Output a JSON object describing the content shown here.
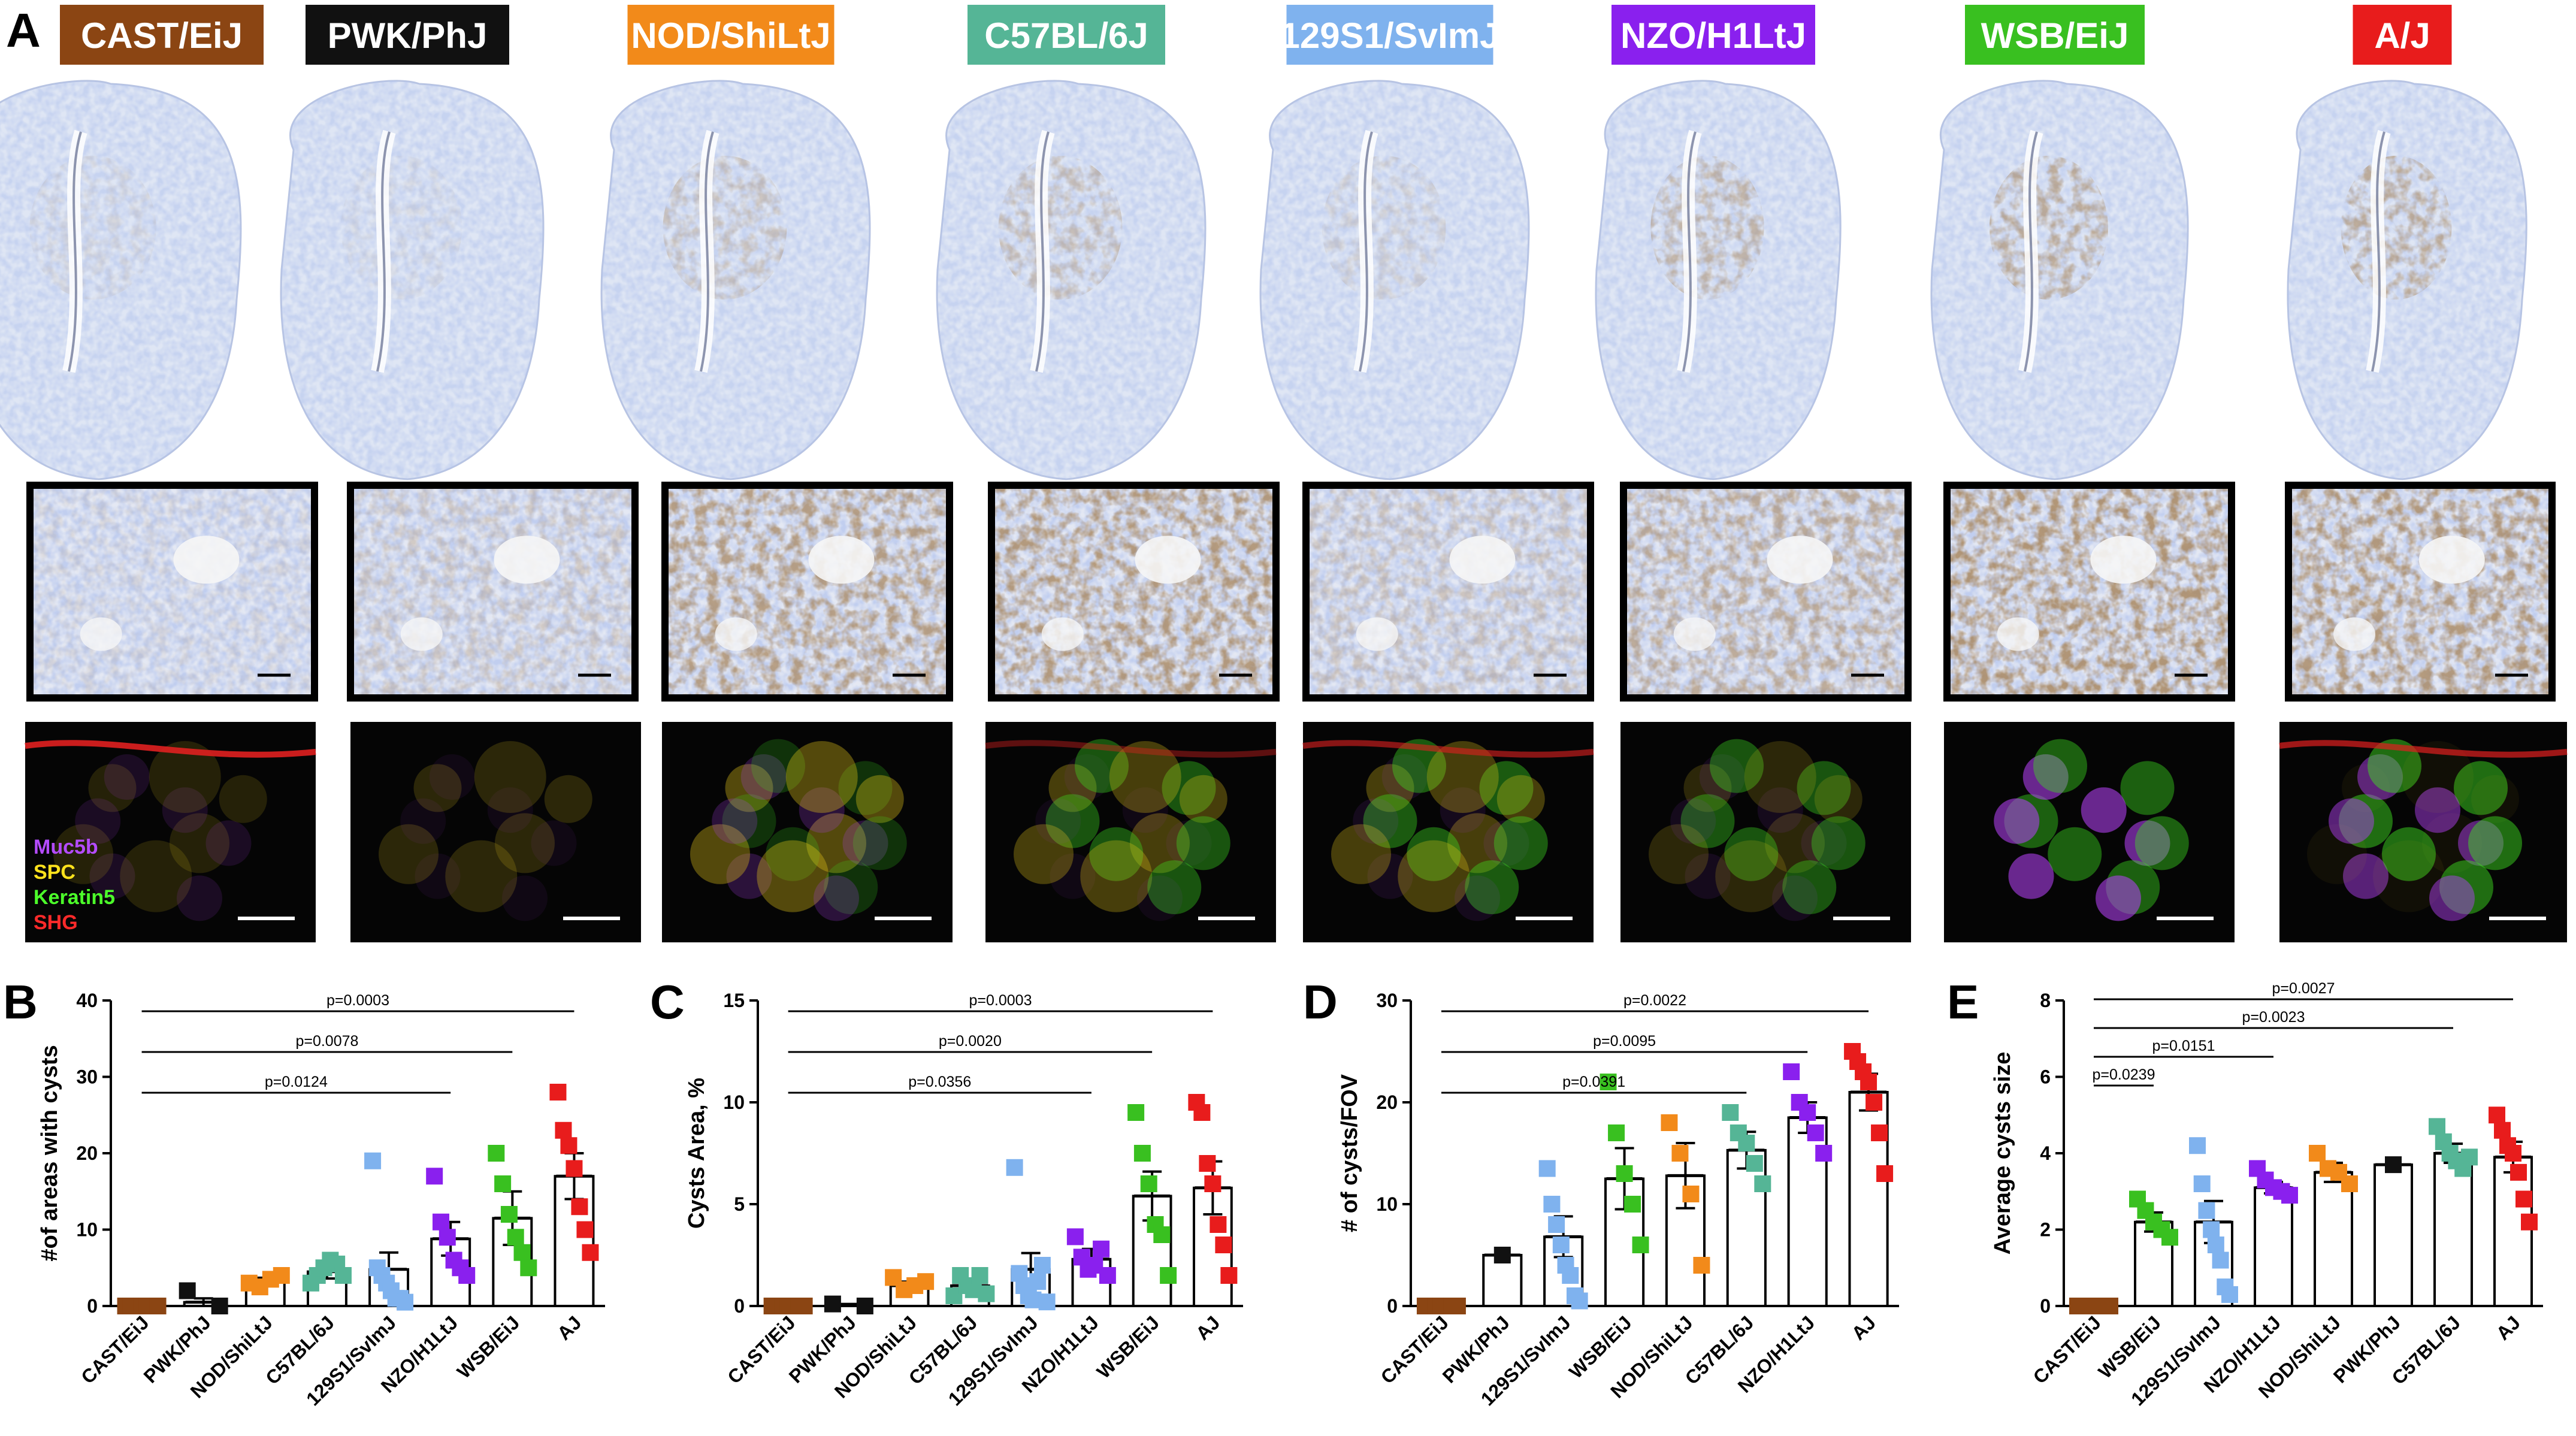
{
  "panel_labels": [
    "A",
    "B",
    "C",
    "D",
    "E"
  ],
  "strains": [
    {
      "name": "CAST/EiJ",
      "color": "#8B4513",
      "text_color": "#ffffff"
    },
    {
      "name": "PWK/PhJ",
      "color": "#111111",
      "text_color": "#ffffff"
    },
    {
      "name": "NOD/ShiLtJ",
      "color": "#F28A1A",
      "text_color": "#ffffff"
    },
    {
      "name": "C57BL/6J",
      "color": "#55B596",
      "text_color": "#ffffff"
    },
    {
      "name": "129S1/SvImJ",
      "color": "#7FB2EE",
      "text_color": "#ffffff"
    },
    {
      "name": "NZO/H1LtJ",
      "color": "#8A20EE",
      "text_color": "#ffffff"
    },
    {
      "name": "WSB/EiJ",
      "color": "#39C020",
      "text_color": "#ffffff"
    },
    {
      "name": "A/J",
      "color": "#E81C1C",
      "text_color": "#ffffff"
    }
  ],
  "fluorescence_legend": [
    {
      "label": "Muc5b",
      "color": "#B44BFF"
    },
    {
      "label": "SPC",
      "color": "#FFE21C"
    },
    {
      "label": "Keratin5",
      "color": "#4CFF2A"
    },
    {
      "label": "SHG",
      "color": "#FF2A2A"
    }
  ],
  "chart_data": [
    {
      "panel": "B",
      "type": "scatter",
      "ylabel": "#of areas with cysts",
      "ylim": [
        0,
        40
      ],
      "yticks": [
        0,
        10,
        20,
        30,
        40
      ],
      "categories": [
        "CAST/EiJ",
        "PWK/PhJ",
        "NOD/ShiLtJ",
        "C57BL/6J",
        "129S1/SvImJ",
        "NZO/H1LtJ",
        "WSB/EiJ",
        "AJ"
      ],
      "colors": [
        "#8B4513",
        "#111111",
        "#F28A1A",
        "#55B596",
        "#7FB2EE",
        "#8A20EE",
        "#39C020",
        "#E81C1C"
      ],
      "means": [
        0,
        0.5,
        3.2,
        4.5,
        4.8,
        8.8,
        11.5,
        17
      ],
      "sems": [
        0,
        0.5,
        0.5,
        0.9,
        2.2,
        2.2,
        3.5,
        3.0
      ],
      "points": [
        [
          0,
          0,
          0,
          0,
          0,
          0,
          0
        ],
        [
          2,
          0
        ],
        [
          3,
          2.5,
          3.5,
          4
        ],
        [
          3,
          4,
          5,
          6,
          5.5,
          4
        ],
        [
          19,
          5,
          4,
          3,
          2,
          1,
          1,
          0.5
        ],
        [
          17,
          11,
          9,
          6,
          5,
          4
        ],
        [
          20,
          16,
          12,
          9,
          7,
          5
        ],
        [
          28,
          23,
          21,
          18,
          13,
          10,
          7
        ]
      ],
      "comparisons": [
        {
          "label": "p=0.0124",
          "from": "CAST/EiJ",
          "to": "NZO/H1LtJ"
        },
        {
          "label": "p=0.0078",
          "from": "CAST/EiJ",
          "to": "WSB/EiJ"
        },
        {
          "label": "p=0.0003",
          "from": "CAST/EiJ",
          "to": "AJ"
        }
      ]
    },
    {
      "panel": "C",
      "type": "scatter",
      "ylabel": "Cysts Area, %",
      "ylim": [
        0,
        15
      ],
      "yticks": [
        0,
        5,
        10,
        15
      ],
      "categories": [
        "CAST/EiJ",
        "PWK/PhJ",
        "NOD/ShiLtJ",
        "C57BL/6J",
        "129S1/SvImJ",
        "NZO/H1LtJ",
        "WSB/EiJ",
        "AJ"
      ],
      "colors": [
        "#8B4513",
        "#111111",
        "#F28A1A",
        "#55B596",
        "#7FB2EE",
        "#8A20EE",
        "#39C020",
        "#E81C1C"
      ],
      "means": [
        0,
        0.05,
        1.0,
        1.0,
        1.8,
        2.3,
        5.4,
        5.8
      ],
      "sems": [
        0,
        0.05,
        0.2,
        0.3,
        0.8,
        0.5,
        1.2,
        1.3
      ],
      "points": [
        [
          0,
          0,
          0,
          0,
          0,
          0,
          0
        ],
        [
          0.1,
          0
        ],
        [
          1.4,
          0.8,
          1.0,
          1.2
        ],
        [
          0.5,
          1.5,
          1.0,
          0.8,
          1.5,
          0.6
        ],
        [
          6.8,
          1.6,
          1.0,
          0.5,
          0.3,
          1.2,
          2.0,
          0.2
        ],
        [
          3.4,
          2.4,
          1.8,
          2.0,
          2.8,
          1.5
        ],
        [
          9.5,
          7.5,
          6.0,
          4.0,
          3.5,
          1.5
        ],
        [
          10,
          9.5,
          7.0,
          6.0,
          4.0,
          3.0,
          1.5
        ]
      ],
      "comparisons": [
        {
          "label": "p=0.0356",
          "from": "CAST/EiJ",
          "to": "NZO/H1LtJ"
        },
        {
          "label": "p=0.0020",
          "from": "CAST/EiJ",
          "to": "WSB/EiJ"
        },
        {
          "label": "p=0.0003",
          "from": "CAST/EiJ",
          "to": "AJ"
        }
      ]
    },
    {
      "panel": "D",
      "type": "scatter",
      "ylabel": "# of cysts/FOV",
      "ylim": [
        0,
        30
      ],
      "yticks": [
        0,
        10,
        20,
        30
      ],
      "categories": [
        "CAST/EiJ",
        "PWK/PhJ",
        "129S1/SvImJ",
        "WSB/EiJ",
        "NOD/ShiLtJ",
        "C57BL/6J",
        "NZO/H1LtJ",
        "AJ"
      ],
      "colors": [
        "#8B4513",
        "#111111",
        "#7FB2EE",
        "#39C020",
        "#F28A1A",
        "#55B596",
        "#8A20EE",
        "#E81C1C"
      ],
      "means": [
        0,
        5,
        6.8,
        12.5,
        12.8,
        15.3,
        18.5,
        21
      ],
      "sems": [
        0,
        0,
        2.0,
        3.0,
        3.2,
        1.8,
        1.5,
        1.8
      ],
      "points": [
        [
          0,
          0,
          0,
          0,
          0,
          0,
          0
        ],
        [
          5
        ],
        [
          13.5,
          10,
          8,
          6,
          4,
          3,
          1,
          0.5
        ],
        [
          22,
          17,
          13,
          10,
          6
        ],
        [
          18,
          15,
          11,
          4
        ],
        [
          19,
          17,
          16,
          14,
          12
        ],
        [
          23,
          20,
          19,
          17,
          15
        ],
        [
          25,
          24,
          23,
          22,
          20,
          17,
          13
        ]
      ],
      "comparisons": [
        {
          "label": "p=0.0391",
          "from": "CAST/EiJ",
          "to": "C57BL/6J"
        },
        {
          "label": "p=0.0095",
          "from": "CAST/EiJ",
          "to": "NZO/H1LtJ"
        },
        {
          "label": "p=0.0022",
          "from": "CAST/EiJ",
          "to": "AJ"
        }
      ]
    },
    {
      "panel": "E",
      "type": "scatter",
      "ylabel": "Average cysts size",
      "ylim": [
        0,
        8
      ],
      "yticks": [
        0,
        2,
        4,
        6,
        8
      ],
      "categories": [
        "CAST/EiJ",
        "WSB/EiJ",
        "129S1/SvImJ",
        "NZO/H1LtJ",
        "NOD/ShiLtJ",
        "PWK/PhJ",
        "C57BL/6J",
        "AJ"
      ],
      "colors": [
        "#8B4513",
        "#39C020",
        "#7FB2EE",
        "#8A20EE",
        "#F28A1A",
        "#111111",
        "#55B596",
        "#E81C1C"
      ],
      "means": [
        0,
        2.2,
        2.2,
        3.1,
        3.5,
        3.7,
        4.0,
        3.9
      ],
      "sems": [
        0,
        0.25,
        0.55,
        0.15,
        0.25,
        0,
        0.25,
        0.4
      ],
      "points": [
        [
          0,
          0,
          0,
          0,
          0,
          0,
          0
        ],
        [
          2.8,
          2.5,
          2.2,
          2.0,
          1.8
        ],
        [
          4.2,
          3.2,
          2.5,
          2.0,
          1.6,
          1.2,
          0.5,
          0.3
        ],
        [
          3.6,
          3.3,
          3.1,
          3.0,
          2.9
        ],
        [
          4.0,
          3.6,
          3.5,
          3.2
        ],
        [
          3.7
        ],
        [
          4.7,
          4.3,
          4.0,
          3.8,
          3.6,
          3.9
        ],
        [
          5.0,
          4.6,
          4.2,
          4.0,
          3.5,
          2.8,
          2.2
        ]
      ],
      "comparisons": [
        {
          "label": "p=0.0239",
          "from": "CAST/EiJ",
          "to": "WSB/EiJ"
        },
        {
          "label": "p=0.0151",
          "from": "CAST/EiJ",
          "to": "NZO/H1LtJ"
        },
        {
          "label": "p=0.0023",
          "from": "CAST/EiJ",
          "to": "C57BL/6J"
        },
        {
          "label": "p=0.0027",
          "from": "CAST/EiJ",
          "to": "AJ"
        }
      ]
    }
  ]
}
